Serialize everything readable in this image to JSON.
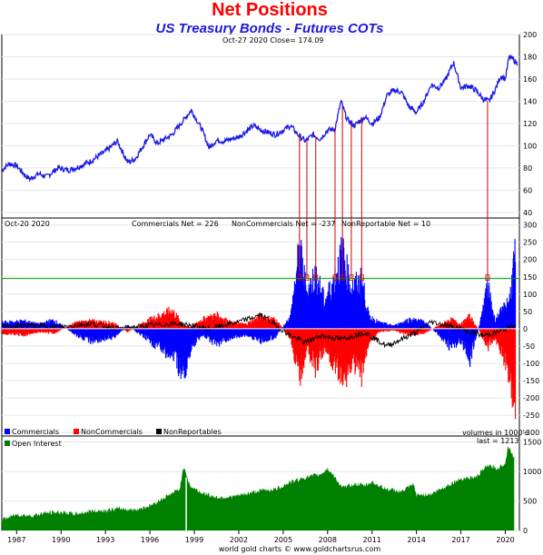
{
  "chart_data": {
    "title": "Net Positions",
    "subtitle": "US Treasury Bonds - Futures COTs",
    "footer": "world gold charts © www.goldchartsrus.com",
    "x_ticks": [
      "1987",
      "1990",
      "1993",
      "1996",
      "1999",
      "2002",
      "2005",
      "2008",
      "2011",
      "2014",
      "2017",
      "2020"
    ],
    "price_panel": {
      "type": "line",
      "header": "Oct-27  2020   Close= 174.09",
      "ylim": [
        35,
        200
      ],
      "y_ticks": [
        40,
        60,
        80,
        100,
        120,
        140,
        160,
        180,
        200
      ],
      "line_color": "#1a1ae6",
      "series": [
        {
          "x": 1986.0,
          "y": 78
        },
        {
          "x": 1986.5,
          "y": 84
        },
        {
          "x": 1987.0,
          "y": 82
        },
        {
          "x": 1987.6,
          "y": 73
        },
        {
          "x": 1987.9,
          "y": 70
        },
        {
          "x": 1988.5,
          "y": 75
        },
        {
          "x": 1989.0,
          "y": 72
        },
        {
          "x": 1989.8,
          "y": 80
        },
        {
          "x": 1990.5,
          "y": 78
        },
        {
          "x": 1991.0,
          "y": 80
        },
        {
          "x": 1992.0,
          "y": 86
        },
        {
          "x": 1993.0,
          "y": 95
        },
        {
          "x": 1993.8,
          "y": 104
        },
        {
          "x": 1994.5,
          "y": 85
        },
        {
          "x": 1995.0,
          "y": 88
        },
        {
          "x": 1996.0,
          "y": 110
        },
        {
          "x": 1996.5,
          "y": 102
        },
        {
          "x": 1997.5,
          "y": 110
        },
        {
          "x": 1998.8,
          "y": 132
        },
        {
          "x": 1999.5,
          "y": 115
        },
        {
          "x": 2000.0,
          "y": 98
        },
        {
          "x": 2000.5,
          "y": 105
        },
        {
          "x": 2001.0,
          "y": 104
        },
        {
          "x": 2002.0,
          "y": 108
        },
        {
          "x": 2003.0,
          "y": 118
        },
        {
          "x": 2003.5,
          "y": 114
        },
        {
          "x": 2004.5,
          "y": 110
        },
        {
          "x": 2005.5,
          "y": 118
        },
        {
          "x": 2006.0,
          "y": 110
        },
        {
          "x": 2006.5,
          "y": 104
        },
        {
          "x": 2007.0,
          "y": 110
        },
        {
          "x": 2007.5,
          "y": 106
        },
        {
          "x": 2008.0,
          "y": 114
        },
        {
          "x": 2008.5,
          "y": 115
        },
        {
          "x": 2008.9,
          "y": 140
        },
        {
          "x": 2009.3,
          "y": 124
        },
        {
          "x": 2009.8,
          "y": 118
        },
        {
          "x": 2010.5,
          "y": 126
        },
        {
          "x": 2011.0,
          "y": 120
        },
        {
          "x": 2011.5,
          "y": 125
        },
        {
          "x": 2012.0,
          "y": 145
        },
        {
          "x": 2012.5,
          "y": 150
        },
        {
          "x": 2013.0,
          "y": 148
        },
        {
          "x": 2013.5,
          "y": 135
        },
        {
          "x": 2014.0,
          "y": 130
        },
        {
          "x": 2014.5,
          "y": 140
        },
        {
          "x": 2015.0,
          "y": 155
        },
        {
          "x": 2015.5,
          "y": 152
        },
        {
          "x": 2016.0,
          "y": 160
        },
        {
          "x": 2016.5,
          "y": 175
        },
        {
          "x": 2017.0,
          "y": 152
        },
        {
          "x": 2017.5,
          "y": 154
        },
        {
          "x": 2018.0,
          "y": 150
        },
        {
          "x": 2018.5,
          "y": 142
        },
        {
          "x": 2018.9,
          "y": 140
        },
        {
          "x": 2019.3,
          "y": 150
        },
        {
          "x": 2019.7,
          "y": 163
        },
        {
          "x": 2020.0,
          "y": 160
        },
        {
          "x": 2020.25,
          "y": 180
        },
        {
          "x": 2020.5,
          "y": 178
        },
        {
          "x": 2020.8,
          "y": 174
        }
      ]
    },
    "net_panel": {
      "type": "area",
      "header_date": "Oct-20  2020",
      "labels": [
        "Commercials Net = 226",
        "NonCommercials Net = -237",
        "NonReportable Net = 10"
      ],
      "ylim": [
        -310,
        320
      ],
      "y_ticks": [
        -300,
        -250,
        -200,
        -150,
        -100,
        -50,
        0,
        50,
        100,
        150,
        200,
        250,
        300
      ],
      "reference_level": 145,
      "legend": [
        {
          "name": "Commercials",
          "color": "#0000ff"
        },
        {
          "name": "NonCommercials",
          "color": "#ff0000"
        },
        {
          "name": "NonReportables",
          "color": "#000000"
        }
      ],
      "commercials": [
        {
          "x": 1986.0,
          "y": 20
        },
        {
          "x": 1987.5,
          "y": 25
        },
        {
          "x": 1988.5,
          "y": 15
        },
        {
          "x": 1989.5,
          "y": 28
        },
        {
          "x": 1991.0,
          "y": -20
        },
        {
          "x": 1992.0,
          "y": -40
        },
        {
          "x": 1993.5,
          "y": -30
        },
        {
          "x": 1994.5,
          "y": 10
        },
        {
          "x": 1996.0,
          "y": -40
        },
        {
          "x": 1997.5,
          "y": -90
        },
        {
          "x": 1998.3,
          "y": -150
        },
        {
          "x": 1998.8,
          "y": -60
        },
        {
          "x": 1999.5,
          "y": -20
        },
        {
          "x": 2000.5,
          "y": -50
        },
        {
          "x": 2001.5,
          "y": -30
        },
        {
          "x": 2002.5,
          "y": -20
        },
        {
          "x": 2003.5,
          "y": -40
        },
        {
          "x": 2004.5,
          "y": -25
        },
        {
          "x": 2005.5,
          "y": 40
        },
        {
          "x": 2006.1,
          "y": 260
        },
        {
          "x": 2006.6,
          "y": 120
        },
        {
          "x": 2007.2,
          "y": 180
        },
        {
          "x": 2007.8,
          "y": 90
        },
        {
          "x": 2008.5,
          "y": 170
        },
        {
          "x": 2009.0,
          "y": 250
        },
        {
          "x": 2009.6,
          "y": 130
        },
        {
          "x": 2010.3,
          "y": 160
        },
        {
          "x": 2010.8,
          "y": 40
        },
        {
          "x": 2011.5,
          "y": 20
        },
        {
          "x": 2012.5,
          "y": 10
        },
        {
          "x": 2013.5,
          "y": 30
        },
        {
          "x": 2014.5,
          "y": 25
        },
        {
          "x": 2015.5,
          "y": -20
        },
        {
          "x": 2016.3,
          "y": -60
        },
        {
          "x": 2017.0,
          "y": -40
        },
        {
          "x": 2017.6,
          "y": -100
        },
        {
          "x": 2018.3,
          "y": 20
        },
        {
          "x": 2018.8,
          "y": 140
        },
        {
          "x": 2019.3,
          "y": 30
        },
        {
          "x": 2019.8,
          "y": 60
        },
        {
          "x": 2020.3,
          "y": 100
        },
        {
          "x": 2020.6,
          "y": 226
        }
      ],
      "noncommercials": [
        {
          "x": 1986.0,
          "y": -15
        },
        {
          "x": 1987.5,
          "y": -20
        },
        {
          "x": 1988.5,
          "y": -10
        },
        {
          "x": 1989.5,
          "y": -15
        },
        {
          "x": 1991.0,
          "y": 20
        },
        {
          "x": 1992.0,
          "y": 25
        },
        {
          "x": 1993.5,
          "y": 20
        },
        {
          "x": 1994.5,
          "y": -10
        },
        {
          "x": 1996.0,
          "y": 30
        },
        {
          "x": 1997.5,
          "y": 60
        },
        {
          "x": 1998.3,
          "y": 10
        },
        {
          "x": 1998.8,
          "y": 5
        },
        {
          "x": 1999.5,
          "y": 30
        },
        {
          "x": 2000.5,
          "y": 45
        },
        {
          "x": 2001.5,
          "y": 20
        },
        {
          "x": 2002.5,
          "y": 15
        },
        {
          "x": 2003.5,
          "y": 40
        },
        {
          "x": 2004.5,
          "y": 30
        },
        {
          "x": 2005.5,
          "y": -30
        },
        {
          "x": 2006.1,
          "y": -160
        },
        {
          "x": 2006.6,
          "y": -60
        },
        {
          "x": 2007.2,
          "y": -130
        },
        {
          "x": 2007.8,
          "y": -60
        },
        {
          "x": 2008.5,
          "y": -120
        },
        {
          "x": 2009.0,
          "y": -180
        },
        {
          "x": 2009.6,
          "y": -110
        },
        {
          "x": 2010.3,
          "y": -150
        },
        {
          "x": 2010.8,
          "y": -40
        },
        {
          "x": 2011.5,
          "y": -10
        },
        {
          "x": 2012.5,
          "y": -5
        },
        {
          "x": 2013.5,
          "y": -20
        },
        {
          "x": 2014.5,
          "y": -15
        },
        {
          "x": 2015.5,
          "y": 10
        },
        {
          "x": 2016.3,
          "y": 30
        },
        {
          "x": 2017.0,
          "y": 15
        },
        {
          "x": 2017.6,
          "y": 40
        },
        {
          "x": 2018.3,
          "y": -10
        },
        {
          "x": 2018.8,
          "y": -60
        },
        {
          "x": 2019.3,
          "y": -30
        },
        {
          "x": 2019.8,
          "y": -80
        },
        {
          "x": 2020.3,
          "y": -150
        },
        {
          "x": 2020.6,
          "y": -237
        }
      ],
      "nonreportables": [
        {
          "x": 1986.0,
          "y": 5
        },
        {
          "x": 1988.0,
          "y": 10
        },
        {
          "x": 1990.0,
          "y": 5
        },
        {
          "x": 1992.0,
          "y": 15
        },
        {
          "x": 1994.0,
          "y": 0
        },
        {
          "x": 1996.0,
          "y": 10
        },
        {
          "x": 1998.0,
          "y": 15
        },
        {
          "x": 2000.0,
          "y": 0
        },
        {
          "x": 2002.0,
          "y": 20
        },
        {
          "x": 2003.5,
          "y": 40
        },
        {
          "x": 2004.5,
          "y": 10
        },
        {
          "x": 2005.5,
          "y": -20
        },
        {
          "x": 2006.5,
          "y": -40
        },
        {
          "x": 2007.5,
          "y": -20
        },
        {
          "x": 2009.0,
          "y": -30
        },
        {
          "x": 2010.5,
          "y": -10
        },
        {
          "x": 2012.0,
          "y": -50
        },
        {
          "x": 2013.0,
          "y": -30
        },
        {
          "x": 2014.0,
          "y": -10
        },
        {
          "x": 2015.0,
          "y": 20
        },
        {
          "x": 2016.0,
          "y": 10
        },
        {
          "x": 2017.0,
          "y": 0
        },
        {
          "x": 2018.5,
          "y": -20
        },
        {
          "x": 2019.5,
          "y": -10
        },
        {
          "x": 2020.6,
          "y": 10
        }
      ],
      "markers_x": [
        2006.1,
        2006.6,
        2007.2,
        2008.5,
        2009.0,
        2009.6,
        2010.3,
        2018.8
      ]
    },
    "oi_panel": {
      "type": "area",
      "legend": "Open Interest",
      "color": "#008000",
      "units_note": "volumes in 1000's",
      "last_note": "last = 1213",
      "ylim": [
        0,
        1600
      ],
      "y_ticks": [
        0,
        500,
        1000,
        1500
      ],
      "series": [
        {
          "x": 1986.0,
          "y": 180
        },
        {
          "x": 1987.0,
          "y": 270
        },
        {
          "x": 1988.0,
          "y": 250
        },
        {
          "x": 1989.0,
          "y": 300
        },
        {
          "x": 1990.0,
          "y": 310
        },
        {
          "x": 1991.0,
          "y": 280
        },
        {
          "x": 1992.0,
          "y": 330
        },
        {
          "x": 1993.0,
          "y": 340
        },
        {
          "x": 1994.0,
          "y": 370
        },
        {
          "x": 1995.0,
          "y": 350
        },
        {
          "x": 1996.0,
          "y": 420
        },
        {
          "x": 1997.0,
          "y": 560
        },
        {
          "x": 1998.0,
          "y": 700
        },
        {
          "x": 1998.3,
          "y": 1100
        },
        {
          "x": 1998.7,
          "y": 750
        },
        {
          "x": 1999.5,
          "y": 640
        },
        {
          "x": 2000.5,
          "y": 560
        },
        {
          "x": 2001.5,
          "y": 570
        },
        {
          "x": 2002.5,
          "y": 620
        },
        {
          "x": 2003.5,
          "y": 680
        },
        {
          "x": 2004.5,
          "y": 700
        },
        {
          "x": 2005.5,
          "y": 820
        },
        {
          "x": 2006.5,
          "y": 900
        },
        {
          "x": 2007.5,
          "y": 950
        },
        {
          "x": 2008.0,
          "y": 1050
        },
        {
          "x": 2008.5,
          "y": 900
        },
        {
          "x": 2009.0,
          "y": 720
        },
        {
          "x": 2009.8,
          "y": 790
        },
        {
          "x": 2010.5,
          "y": 760
        },
        {
          "x": 2011.0,
          "y": 820
        },
        {
          "x": 2012.0,
          "y": 700
        },
        {
          "x": 2013.0,
          "y": 660
        },
        {
          "x": 2013.8,
          "y": 780
        },
        {
          "x": 2014.0,
          "y": 600
        },
        {
          "x": 2015.0,
          "y": 620
        },
        {
          "x": 2016.0,
          "y": 750
        },
        {
          "x": 2017.0,
          "y": 880
        },
        {
          "x": 2018.0,
          "y": 900
        },
        {
          "x": 2018.8,
          "y": 1100
        },
        {
          "x": 2019.5,
          "y": 1050
        },
        {
          "x": 2020.0,
          "y": 1150
        },
        {
          "x": 2020.2,
          "y": 1450
        },
        {
          "x": 2020.6,
          "y": 1213
        }
      ]
    }
  }
}
